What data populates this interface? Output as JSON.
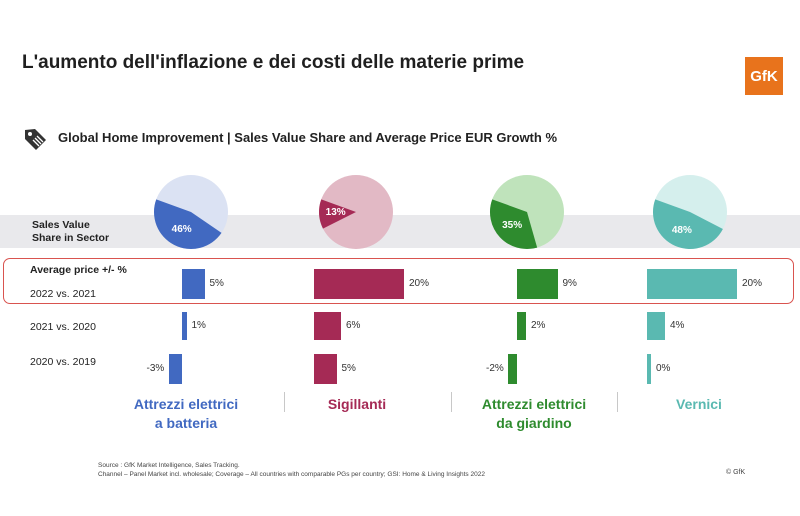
{
  "title": "L'aumento dell'inflazione e dei costi delle materie prime",
  "logo_text": "GfK",
  "icon": "price-tag-icon",
  "subtitle": "Global Home Improvement | Sales Value Share and Average Price EUR Growth %",
  "row_labels": {
    "share_line1": "Sales Value",
    "share_line2": "Share in Sector",
    "avg_price": "Average price +/- %",
    "y2022": "2022 vs. 2021",
    "y2021": "2021 vs. 2020",
    "y2020": "2020 vs. 2019"
  },
  "source_line1": "Source : GfK Market Intelligence, Sales Tracking.",
  "source_line2": "Channel – Panel Market incl. wholesale; Coverage – All countries with comparable PGs per country; GSI: Home & Living Insights 2022",
  "copyright": "© GfK",
  "chart_data": {
    "type": "bar",
    "periods": [
      "2022 vs. 2021",
      "2021 vs. 2020",
      "2020 vs. 2019"
    ],
    "categories": [
      {
        "name_line1": "Attrezzi elettrici",
        "name_line2": "a batteria",
        "color": "#4169c1",
        "light_color": "#dbe2f3",
        "share": 46,
        "share_label": "46%",
        "growth": [
          5,
          1,
          -3
        ],
        "growth_labels": [
          "5%",
          "1%",
          "-3%"
        ]
      },
      {
        "name_line1": "Sigillanti",
        "name_line2": "",
        "color": "#a52a55",
        "light_color": "#e2b9c5",
        "share": 13,
        "share_label": "13%",
        "growth": [
          20,
          6,
          5
        ],
        "growth_labels": [
          "20%",
          "6%",
          "5%"
        ]
      },
      {
        "name_line1": "Attrezzi elettrici",
        "name_line2": "da giardino",
        "color": "#2e8b2e",
        "light_color": "#bfe3bb",
        "share": 35,
        "share_label": "35%",
        "growth": [
          9,
          2,
          -2
        ],
        "growth_labels": [
          "9%",
          "2%",
          "-2%"
        ]
      },
      {
        "name_line1": "Vernici",
        "name_line2": "",
        "color": "#5ab9b1",
        "light_color": "#d5efed",
        "share": 48,
        "share_label": "48%",
        "growth": [
          20,
          4,
          0
        ],
        "growth_labels": [
          "20%",
          "4%",
          "0%"
        ]
      }
    ]
  }
}
